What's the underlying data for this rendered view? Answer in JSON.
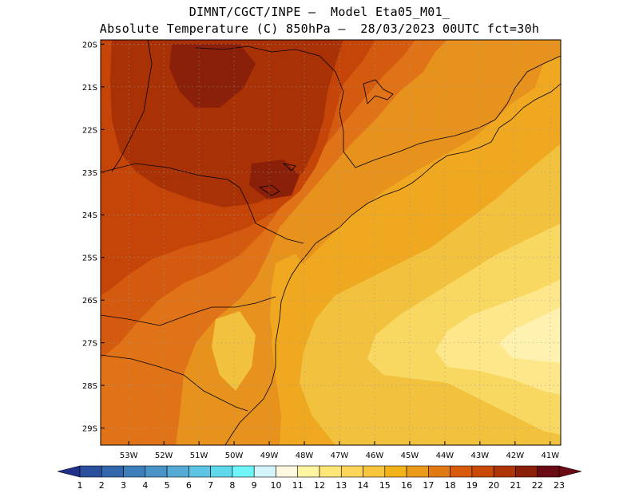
{
  "title_line1": "DIMNT/CGCT/INPE –  Model Eta05_M01_",
  "title_line2": "Absolute Temperature (C) 850hPa –  28/03/2023 00UTC fct=30h",
  "axes": {
    "lon_labels": [
      "53W",
      "52W",
      "51W",
      "50W",
      "49W",
      "48W",
      "47W",
      "46W",
      "45W",
      "44W",
      "43W",
      "42W",
      "41W"
    ],
    "lat_labels": [
      "20S",
      "21S",
      "22S",
      "23S",
      "24S",
      "25S",
      "26S",
      "27S",
      "28S",
      "29S"
    ],
    "lon_range": [
      -53.8,
      -40.7
    ],
    "lat_range": [
      -29.4,
      -19.9
    ]
  },
  "colorbar": {
    "labels": [
      "1",
      "2",
      "3",
      "4",
      "5",
      "6",
      "7",
      "8",
      "9",
      "10",
      "11",
      "12",
      "13",
      "14",
      "15",
      "16",
      "17",
      "18",
      "19",
      "20",
      "21",
      "22",
      "23"
    ],
    "colors": [
      "#20308a",
      "#2a4f9c",
      "#3366aa",
      "#3d7fbb",
      "#4a94c8",
      "#55aad6",
      "#5dc4e4",
      "#5fd8ec",
      "#6ff5f8",
      "#d4f5fb",
      "#fff8e0",
      "#fff5a0",
      "#ffe678",
      "#fcd55a",
      "#f7c63c",
      "#f2b21a",
      "#eb9b1a",
      "#e27a14",
      "#d85a0c",
      "#c84a06",
      "#ad3508",
      "#8a1f0a",
      "#6a0a14"
    ]
  },
  "colors": {
    "c15": "#f2c23e",
    "c16": "#efa820",
    "c17": "#e8921e",
    "c18": "#e07218",
    "c19": "#d45a10",
    "c20": "#c54408",
    "c21": "#a83206",
    "c22": "#8a1f0a",
    "c14": "#f8d860",
    "c13": "#fde78a",
    "c12": "#fff2b0"
  }
}
